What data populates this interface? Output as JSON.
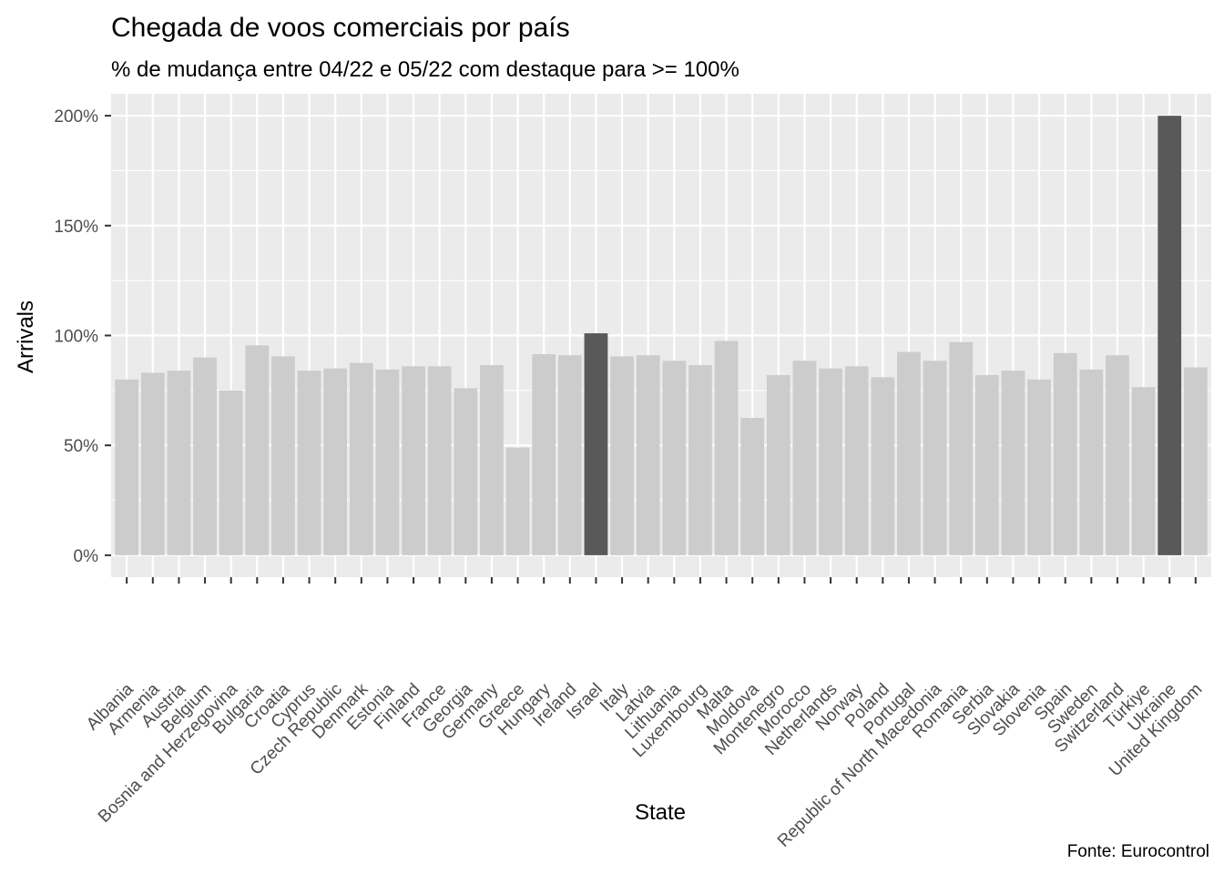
{
  "chart_data": {
    "type": "bar",
    "title": "Chegada de voos comerciais por país",
    "subtitle": "% de mudança entre 04/22 e 05/22 com destaque para >= 100%",
    "xlabel": "State",
    "ylabel": "Arrivals",
    "caption": "Fonte: Eurocontrol",
    "ylim": [
      -10,
      210
    ],
    "yticks": [
      0,
      50,
      100,
      150,
      200
    ],
    "ytick_labels": [
      "0%",
      "50%",
      "100%",
      "150%",
      "200%"
    ],
    "grid": true,
    "highlight_threshold": 100,
    "colors": {
      "panel": "#EBEBEB",
      "grid": "#FFFFFF",
      "bar": "#CCCCCC",
      "highlight": "#595959",
      "tick": "#333333"
    },
    "categories": [
      "Albania",
      "Armenia",
      "Austria",
      "Belgium",
      "Bosnia and Herzegovina",
      "Bulgaria",
      "Croatia",
      "Cyprus",
      "Czech Republic",
      "Denmark",
      "Estonia",
      "Finland",
      "France",
      "Georgia",
      "Germany",
      "Greece",
      "Hungary",
      "Ireland",
      "Israel",
      "Italy",
      "Latvia",
      "Lithuania",
      "Luxembourg",
      "Malta",
      "Moldova",
      "Montenegro",
      "Morocco",
      "Netherlands",
      "Norway",
      "Poland",
      "Portugal",
      "Republic of North Macedonia",
      "Romania",
      "Serbia",
      "Slovakia",
      "Slovenia",
      "Spain",
      "Sweden",
      "Switzerland",
      "Türkiye",
      "Ukraine",
      "United Kingdom"
    ],
    "values": [
      80,
      83,
      84,
      90,
      75,
      95.5,
      90.5,
      84,
      85,
      87.5,
      84.5,
      86,
      86,
      76,
      86.5,
      49,
      91.5,
      91,
      101,
      90.5,
      91,
      88.5,
      86.5,
      97.5,
      62.5,
      82,
      88.5,
      85,
      86,
      81,
      92.5,
      88.5,
      97,
      82,
      84,
      80,
      92,
      84.5,
      91,
      76.5,
      200,
      85.5
    ]
  }
}
